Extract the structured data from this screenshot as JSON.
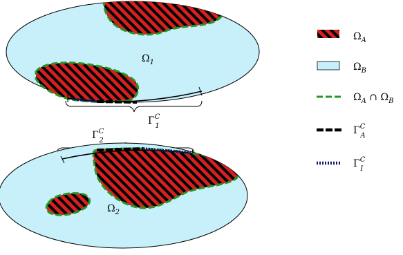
{
  "colors": {
    "omega_b_fill": "#c8f0fb",
    "omega_a_fill": "#d62020",
    "omega_a_hatch": "#000000",
    "intersection_border": "#229922",
    "gamma_a": "#000000",
    "gamma_i": "#0b1a70",
    "outline": "#000000"
  },
  "labels": {
    "omega1": {
      "base": "Ω",
      "sub": "1"
    },
    "omega2": {
      "base": "Ω",
      "sub": "2"
    },
    "gamma1c": {
      "base": "Γ",
      "sup": "C",
      "sub": "1"
    },
    "gamma2c": {
      "base": "Γ",
      "sup": "C",
      "sub": "2"
    }
  },
  "legend": [
    {
      "key": "omega_a",
      "base": "Ω",
      "sub": "A",
      "tail": ""
    },
    {
      "key": "omega_b",
      "base": "Ω",
      "sub": "B",
      "tail": ""
    },
    {
      "key": "intersection",
      "base": "Ω",
      "sub": "A",
      "tail": " ∩ ",
      "base2": "Ω",
      "sub2": "B"
    },
    {
      "key": "gamma_a",
      "base": "Γ",
      "sup": "C",
      "sub": "A",
      "tail": ""
    },
    {
      "key": "gamma_i",
      "base": "Γ",
      "sup": "C",
      "sub": "I",
      "tail": ""
    }
  ]
}
